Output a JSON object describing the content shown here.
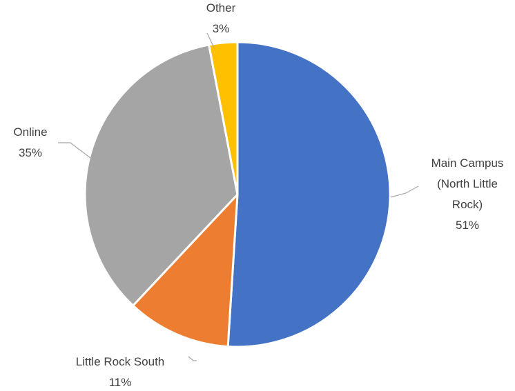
{
  "chart_data": {
    "type": "pie",
    "title": "",
    "start_angle_deg": 0,
    "direction": "clockwise",
    "slices": [
      {
        "label_lines": [
          "Main Campus",
          "(North Little",
          "Rock)"
        ],
        "percent_label": "51%",
        "value": 51,
        "color": "#4472c4",
        "key": "main-campus"
      },
      {
        "label_lines": [
          "Little Rock South"
        ],
        "percent_label": "11%",
        "value": 11,
        "color": "#ed7d31",
        "key": "little-rock-south"
      },
      {
        "label_lines": [
          "Online"
        ],
        "percent_label": "35%",
        "value": 35,
        "color": "#a5a5a5",
        "key": "online"
      },
      {
        "label_lines": [
          "Other"
        ],
        "percent_label": "3%",
        "value": 3,
        "color": "#ffc000",
        "key": "other"
      }
    ],
    "legend": "none",
    "data_labels": "outside-with-leader-lines"
  }
}
